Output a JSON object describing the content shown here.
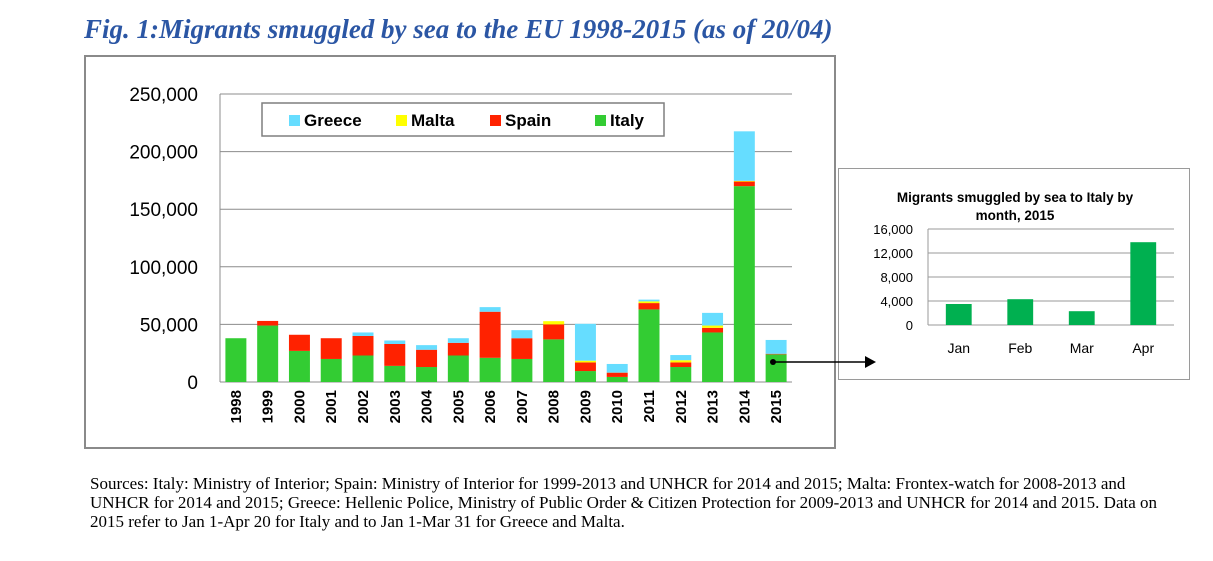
{
  "figure": {
    "title": "Fig. 1:Migrants smuggled by sea to the EU 1998-2015 (as of 20/04)",
    "sources": "Sources: Italy: Ministry of Interior; Spain: Ministry of Interior for 1999-2013 and UNHCR for 2014 and 2015; Malta: Frontex-watch for 2008-2013 and UNHCR for 2014 and 2015; Greece: Hellenic Police, Ministry of Public Order & Citizen Protection for 2009-2013 and UNHCR for 2014 and 2015. Data on 2015 refer to Jan 1-Apr 20 for Italy and to Jan 1-Mar 31 for Greece and Malta."
  },
  "chart_data": [
    {
      "type": "bar",
      "stacked": true,
      "title": "",
      "xlabel": "",
      "ylabel": "",
      "categories": [
        "1998",
        "1999",
        "2000",
        "2001",
        "2002",
        "2003",
        "2004",
        "2005",
        "2006",
        "2007",
        "2008",
        "2009",
        "2010",
        "2011",
        "2012",
        "2013",
        "2014",
        "2015"
      ],
      "series": [
        {
          "name": "Italy",
          "color": "#33cc33",
          "values": [
            38000,
            49000,
            27000,
            20000,
            23000,
            14000,
            13000,
            23000,
            21000,
            20000,
            37000,
            9500,
            4400,
            63000,
            13000,
            43000,
            170000,
            24000
          ]
        },
        {
          "name": "Spain",
          "color": "#ff2200",
          "values": [
            0,
            4000,
            14000,
            18000,
            17000,
            19000,
            15000,
            11000,
            40000,
            18000,
            13000,
            7500,
            3700,
            5500,
            4000,
            4000,
            4000,
            500
          ]
        },
        {
          "name": "Malta",
          "color": "#ffff00",
          "values": [
            0,
            0,
            0,
            0,
            0,
            0,
            0,
            0,
            0,
            0,
            2800,
            1500,
            50,
            1500,
            1900,
            2000,
            600,
            0
          ]
        },
        {
          "name": "Greece",
          "color": "#66ddff",
          "values": [
            0,
            0,
            0,
            0,
            3000,
            3000,
            4000,
            4000,
            4000,
            7000,
            0,
            32000,
            7500,
            1500,
            4500,
            11000,
            43000,
            12000
          ]
        }
      ],
      "legend_order": [
        "Greece",
        "Malta",
        "Spain",
        "Italy"
      ],
      "legend_position": "top",
      "ylim": [
        0,
        250000
      ],
      "yticks": [
        "0",
        "50,000",
        "100,000",
        "150,000",
        "200,000",
        "250,000"
      ],
      "grid": true
    },
    {
      "type": "bar",
      "title": "Migrants smuggled by sea to Italy by month, 2015",
      "xlabel": "",
      "ylabel": "",
      "categories": [
        "Jan",
        "Feb",
        "Mar",
        "Apr"
      ],
      "series": [
        {
          "name": "",
          "color": "#00b050",
          "values": [
            3500,
            4300,
            2300,
            13800
          ]
        }
      ],
      "ylim": [
        0,
        16000
      ],
      "yticks": [
        "0",
        "4,000",
        "8,000",
        "12,000",
        "16,000"
      ],
      "grid": true
    }
  ]
}
